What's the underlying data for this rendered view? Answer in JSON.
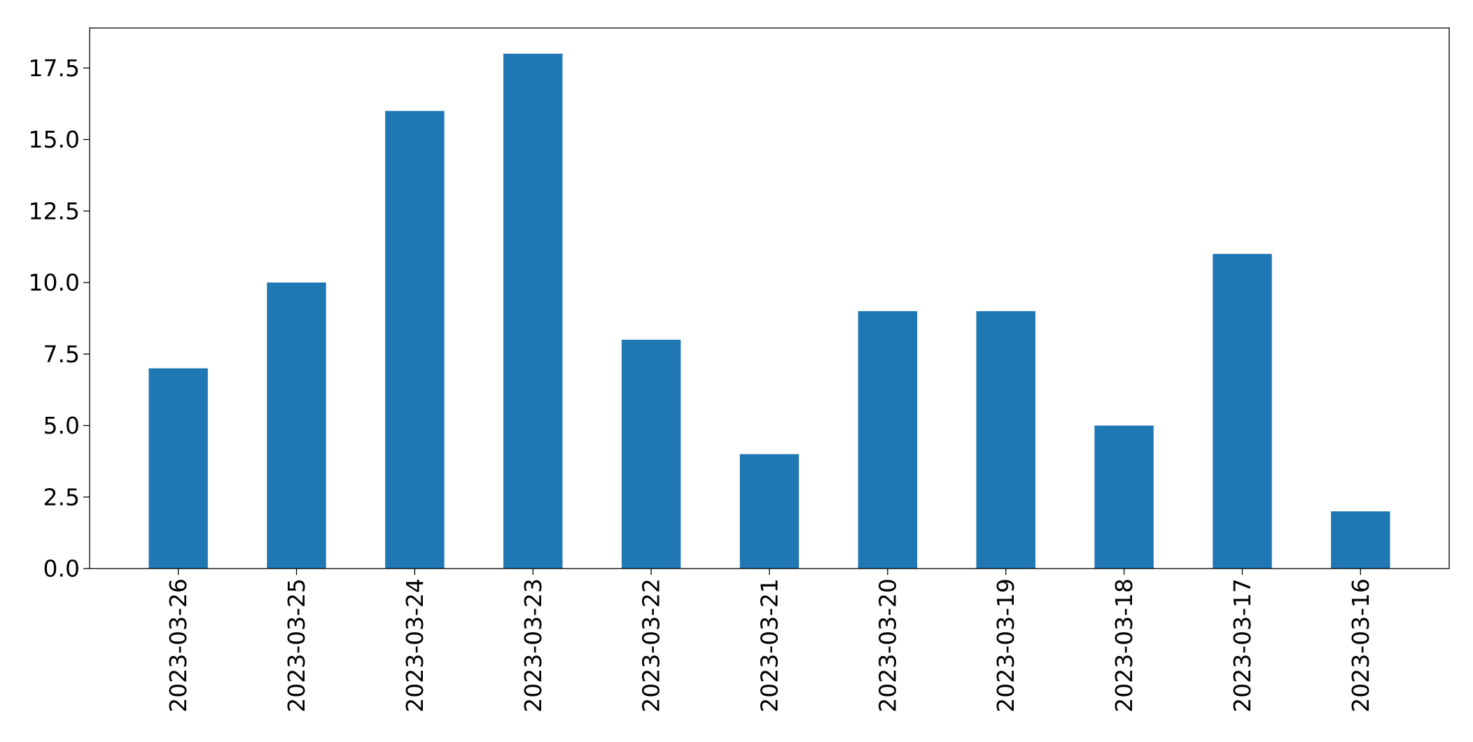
{
  "chart_data": {
    "type": "bar",
    "categories": [
      "2023-03-26",
      "2023-03-25",
      "2023-03-24",
      "2023-03-23",
      "2023-03-22",
      "2023-03-21",
      "2023-03-20",
      "2023-03-19",
      "2023-03-18",
      "2023-03-17",
      "2023-03-16"
    ],
    "values": [
      7,
      10,
      16,
      18,
      8,
      4,
      9,
      9,
      5,
      11,
      2
    ],
    "yticks": [
      "0.0",
      "2.5",
      "5.0",
      "7.5",
      "10.0",
      "12.5",
      "15.0",
      "17.5"
    ],
    "ylim": [
      0,
      18.9
    ],
    "title": "",
    "xlabel": "",
    "ylabel": "",
    "grid": false,
    "colors": {
      "bar": "#1f77b4",
      "axis": "#000000"
    }
  }
}
